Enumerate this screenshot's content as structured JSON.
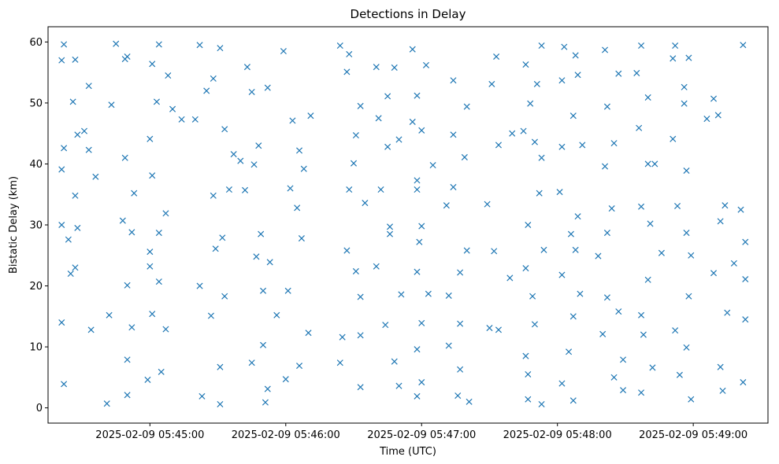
{
  "chart_data": {
    "type": "scatter",
    "title": "Detections in Delay",
    "xlabel": "Time (UTC)",
    "ylabel": "Bistatic Delay (km)",
    "marker": "x",
    "color": "#1f77b4",
    "grid": false,
    "x_axis_type": "time",
    "xlim": [
      "2025-02-09 05:44:15",
      "2025-02-09 05:49:33"
    ],
    "ylim": [
      -2.5,
      62.5
    ],
    "x_ticks": [
      "2025-02-09 05:45:00",
      "2025-02-09 05:46:00",
      "2025-02-09 05:47:00",
      "2025-02-09 05:48:00",
      "2025-02-09 05:49:00"
    ],
    "y_ticks": [
      "0",
      "10",
      "20",
      "30",
      "40",
      "50",
      "60"
    ],
    "points": [
      [
        "2025-02-09 05:44:22",
        59.6
      ],
      [
        "2025-02-09 05:44:21",
        57.0
      ],
      [
        "2025-02-09 05:44:27",
        57.1
      ],
      [
        "2025-02-09 05:44:33",
        52.8
      ],
      [
        "2025-02-09 05:44:26",
        50.2
      ],
      [
        "2025-02-09 05:44:31",
        45.4
      ],
      [
        "2025-02-09 05:44:28",
        44.8
      ],
      [
        "2025-02-09 05:44:22",
        42.6
      ],
      [
        "2025-02-09 05:44:33",
        42.3
      ],
      [
        "2025-02-09 05:44:21",
        39.1
      ],
      [
        "2025-02-09 05:44:36",
        37.9
      ],
      [
        "2025-02-09 05:44:27",
        34.8
      ],
      [
        "2025-02-09 05:44:21",
        30.0
      ],
      [
        "2025-02-09 05:44:28",
        29.5
      ],
      [
        "2025-02-09 05:44:24",
        27.6
      ],
      [
        "2025-02-09 05:44:27",
        23.0
      ],
      [
        "2025-02-09 05:44:25",
        22.0
      ],
      [
        "2025-02-09 05:44:34",
        12.8
      ],
      [
        "2025-02-09 05:44:21",
        14.0
      ],
      [
        "2025-02-09 05:44:22",
        3.9
      ],
      [
        "2025-02-09 05:44:45",
        59.7
      ],
      [
        "2025-02-09 05:44:49",
        57.2
      ],
      [
        "2025-02-09 05:44:50",
        57.6
      ],
      [
        "2025-02-09 05:44:43",
        49.7
      ],
      [
        "2025-02-09 05:44:49",
        41.0
      ],
      [
        "2025-02-09 05:44:53",
        35.2
      ],
      [
        "2025-02-09 05:44:48",
        30.7
      ],
      [
        "2025-02-09 05:44:52",
        28.8
      ],
      [
        "2025-02-09 05:44:50",
        20.1
      ],
      [
        "2025-02-09 05:44:52",
        13.2
      ],
      [
        "2025-02-09 05:44:42",
        15.2
      ],
      [
        "2025-02-09 05:44:50",
        7.9
      ],
      [
        "2025-02-09 05:44:50",
        2.1
      ],
      [
        "2025-02-09 05:44:41",
        0.7
      ],
      [
        "2025-02-09 05:45:04",
        59.6
      ],
      [
        "2025-02-09 05:45:01",
        56.4
      ],
      [
        "2025-02-09 05:45:08",
        54.5
      ],
      [
        "2025-02-09 05:45:03",
        50.2
      ],
      [
        "2025-02-09 05:45:10",
        49.0
      ],
      [
        "2025-02-09 05:45:14",
        47.3
      ],
      [
        "2025-02-09 05:45:00",
        44.1
      ],
      [
        "2025-02-09 05:45:01",
        38.1
      ],
      [
        "2025-02-09 05:45:07",
        31.9
      ],
      [
        "2025-02-09 05:45:04",
        28.7
      ],
      [
        "2025-02-09 05:45:00",
        25.6
      ],
      [
        "2025-02-09 05:45:00",
        23.2
      ],
      [
        "2025-02-09 05:45:04",
        20.7
      ],
      [
        "2025-02-09 05:45:07",
        12.9
      ],
      [
        "2025-02-09 05:45:01",
        15.4
      ],
      [
        "2025-02-09 05:45:05",
        5.9
      ],
      [
        "2025-02-09 05:44:59",
        4.6
      ],
      [
        "2025-02-09 05:45:22",
        59.5
      ],
      [
        "2025-02-09 05:45:31",
        59.0
      ],
      [
        "2025-02-09 05:45:28",
        54.0
      ],
      [
        "2025-02-09 05:45:25",
        52.0
      ],
      [
        "2025-02-09 05:45:20",
        47.3
      ],
      [
        "2025-02-09 05:45:33",
        45.7
      ],
      [
        "2025-02-09 05:45:37",
        41.6
      ],
      [
        "2025-02-09 05:45:40",
        40.5
      ],
      [
        "2025-02-09 05:45:35",
        35.8
      ],
      [
        "2025-02-09 05:45:28",
        34.8
      ],
      [
        "2025-02-09 05:45:32",
        27.9
      ],
      [
        "2025-02-09 05:45:29",
        26.1
      ],
      [
        "2025-02-09 05:45:22",
        20.0
      ],
      [
        "2025-02-09 05:45:33",
        18.3
      ],
      [
        "2025-02-09 05:45:27",
        15.1
      ],
      [
        "2025-02-09 05:45:31",
        6.7
      ],
      [
        "2025-02-09 05:45:23",
        1.9
      ],
      [
        "2025-02-09 05:45:31",
        0.6
      ],
      [
        "2025-02-09 05:45:43",
        55.9
      ],
      [
        "2025-02-09 05:45:52",
        52.5
      ],
      [
        "2025-02-09 05:45:59",
        58.5
      ],
      [
        "2025-02-09 05:45:45",
        51.8
      ],
      [
        "2025-02-09 05:45:48",
        43.0
      ],
      [
        "2025-02-09 05:45:46",
        39.9
      ],
      [
        "2025-02-09 05:45:42",
        35.7
      ],
      [
        "2025-02-09 05:45:49",
        28.5
      ],
      [
        "2025-02-09 05:45:47",
        24.8
      ],
      [
        "2025-02-09 05:45:53",
        23.9
      ],
      [
        "2025-02-09 05:45:50",
        19.2
      ],
      [
        "2025-02-09 05:45:56",
        15.2
      ],
      [
        "2025-02-09 05:45:50",
        10.3
      ],
      [
        "2025-02-09 05:45:45",
        7.4
      ],
      [
        "2025-02-09 05:45:52",
        3.1
      ],
      [
        "2025-02-09 05:45:51",
        0.9
      ],
      [
        "2025-02-09 05:46:03",
        47.1
      ],
      [
        "2025-02-09 05:46:11",
        47.9
      ],
      [
        "2025-02-09 05:46:06",
        42.2
      ],
      [
        "2025-02-09 05:46:08",
        39.2
      ],
      [
        "2025-02-09 05:46:02",
        36.0
      ],
      [
        "2025-02-09 05:46:05",
        32.8
      ],
      [
        "2025-02-09 05:46:07",
        27.8
      ],
      [
        "2025-02-09 05:46:01",
        19.2
      ],
      [
        "2025-02-09 05:46:10",
        12.3
      ],
      [
        "2025-02-09 05:46:06",
        6.9
      ],
      [
        "2025-02-09 05:46:00",
        4.7
      ],
      [
        "2025-02-09 05:46:24",
        59.4
      ],
      [
        "2025-02-09 05:46:28",
        58.0
      ],
      [
        "2025-02-09 05:46:27",
        55.1
      ],
      [
        "2025-02-09 05:46:33",
        49.5
      ],
      [
        "2025-02-09 05:46:31",
        44.7
      ],
      [
        "2025-02-09 05:46:30",
        40.1
      ],
      [
        "2025-02-09 05:46:28",
        35.8
      ],
      [
        "2025-02-09 05:46:35",
        33.6
      ],
      [
        "2025-02-09 05:46:27",
        25.8
      ],
      [
        "2025-02-09 05:46:31",
        22.4
      ],
      [
        "2025-02-09 05:46:33",
        18.2
      ],
      [
        "2025-02-09 05:46:25",
        11.6
      ],
      [
        "2025-02-09 05:46:33",
        11.9
      ],
      [
        "2025-02-09 05:46:24",
        7.4
      ],
      [
        "2025-02-09 05:46:33",
        3.4
      ],
      [
        "2025-02-09 05:46:40",
        55.9
      ],
      [
        "2025-02-09 05:46:48",
        55.8
      ],
      [
        "2025-02-09 05:46:45",
        51.1
      ],
      [
        "2025-02-09 05:46:41",
        47.5
      ],
      [
        "2025-02-09 05:46:45",
        42.8
      ],
      [
        "2025-02-09 05:46:50",
        44.0
      ],
      [
        "2025-02-09 05:46:42",
        35.8
      ],
      [
        "2025-02-09 05:46:46",
        29.7
      ],
      [
        "2025-02-09 05:46:46",
        28.5
      ],
      [
        "2025-02-09 05:46:40",
        23.2
      ],
      [
        "2025-02-09 05:46:51",
        18.6
      ],
      [
        "2025-02-09 05:46:44",
        13.6
      ],
      [
        "2025-02-09 05:46:48",
        7.6
      ],
      [
        "2025-02-09 05:46:50",
        3.6
      ],
      [
        "2025-02-09 05:46:56",
        58.8
      ],
      [
        "2025-02-09 05:47:02",
        56.2
      ],
      [
        "2025-02-09 05:46:58",
        51.2
      ],
      [
        "2025-02-09 05:46:56",
        46.9
      ],
      [
        "2025-02-09 05:47:00",
        45.5
      ],
      [
        "2025-02-09 05:47:05",
        39.8
      ],
      [
        "2025-02-09 05:46:58",
        37.3
      ],
      [
        "2025-02-09 05:46:58",
        35.8
      ],
      [
        "2025-02-09 05:47:00",
        29.8
      ],
      [
        "2025-02-09 05:46:59",
        27.2
      ],
      [
        "2025-02-09 05:46:58",
        22.3
      ],
      [
        "2025-02-09 05:47:03",
        18.7
      ],
      [
        "2025-02-09 05:47:00",
        13.9
      ],
      [
        "2025-02-09 05:46:58",
        9.6
      ],
      [
        "2025-02-09 05:47:00",
        4.2
      ],
      [
        "2025-02-09 05:46:58",
        1.9
      ],
      [
        "2025-02-09 05:47:14",
        53.7
      ],
      [
        "2025-02-09 05:47:20",
        49.4
      ],
      [
        "2025-02-09 05:47:14",
        44.8
      ],
      [
        "2025-02-09 05:47:19",
        41.1
      ],
      [
        "2025-02-09 05:47:14",
        36.2
      ],
      [
        "2025-02-09 05:47:11",
        33.2
      ],
      [
        "2025-02-09 05:47:20",
        25.8
      ],
      [
        "2025-02-09 05:47:17",
        22.2
      ],
      [
        "2025-02-09 05:47:12",
        18.4
      ],
      [
        "2025-02-09 05:47:17",
        13.8
      ],
      [
        "2025-02-09 05:47:12",
        10.2
      ],
      [
        "2025-02-09 05:47:17",
        6.3
      ],
      [
        "2025-02-09 05:47:16",
        2.0
      ],
      [
        "2025-02-09 05:47:21",
        1.0
      ],
      [
        "2025-02-09 05:47:33",
        57.6
      ],
      [
        "2025-02-09 05:47:31",
        53.1
      ],
      [
        "2025-02-09 05:47:40",
        45.0
      ],
      [
        "2025-02-09 05:47:34",
        43.1
      ],
      [
        "2025-02-09 05:47:29",
        33.4
      ],
      [
        "2025-02-09 05:47:32",
        25.7
      ],
      [
        "2025-02-09 05:47:39",
        21.3
      ],
      [
        "2025-02-09 05:47:34",
        12.8
      ],
      [
        "2025-02-09 05:47:30",
        13.1
      ],
      [
        "2025-02-09 05:47:46",
        56.3
      ],
      [
        "2025-02-09 05:47:53",
        59.4
      ],
      [
        "2025-02-09 05:47:51",
        53.1
      ],
      [
        "2025-02-09 05:47:48",
        49.9
      ],
      [
        "2025-02-09 05:47:45",
        45.4
      ],
      [
        "2025-02-09 05:47:50",
        43.6
      ],
      [
        "2025-02-09 05:47:53",
        41.0
      ],
      [
        "2025-02-09 05:47:52",
        35.2
      ],
      [
        "2025-02-09 05:47:47",
        30.0
      ],
      [
        "2025-02-09 05:47:54",
        25.9
      ],
      [
        "2025-02-09 05:47:46",
        22.9
      ],
      [
        "2025-02-09 05:47:49",
        18.3
      ],
      [
        "2025-02-09 05:47:50",
        13.7
      ],
      [
        "2025-02-09 05:47:46",
        8.5
      ],
      [
        "2025-02-09 05:47:47",
        5.5
      ],
      [
        "2025-02-09 05:47:47",
        1.4
      ],
      [
        "2025-02-09 05:47:53",
        0.6
      ],
      [
        "2025-02-09 05:48:03",
        59.2
      ],
      [
        "2025-02-09 05:48:08",
        57.8
      ],
      [
        "2025-02-09 05:48:09",
        54.6
      ],
      [
        "2025-02-09 05:48:02",
        53.7
      ],
      [
        "2025-02-09 05:48:07",
        47.9
      ],
      [
        "2025-02-09 05:48:11",
        43.1
      ],
      [
        "2025-02-09 05:48:02",
        42.8
      ],
      [
        "2025-02-09 05:48:01",
        35.4
      ],
      [
        "2025-02-09 05:48:09",
        31.4
      ],
      [
        "2025-02-09 05:48:06",
        28.5
      ],
      [
        "2025-02-09 05:48:08",
        25.9
      ],
      [
        "2025-02-09 05:48:02",
        21.8
      ],
      [
        "2025-02-09 05:48:10",
        18.7
      ],
      [
        "2025-02-09 05:48:07",
        15.0
      ],
      [
        "2025-02-09 05:48:05",
        9.2
      ],
      [
        "2025-02-09 05:48:02",
        4.0
      ],
      [
        "2025-02-09 05:48:07",
        1.2
      ],
      [
        "2025-02-09 05:48:21",
        58.7
      ],
      [
        "2025-02-09 05:48:27",
        54.8
      ],
      [
        "2025-02-09 05:48:22",
        49.4
      ],
      [
        "2025-02-09 05:48:25",
        43.4
      ],
      [
        "2025-02-09 05:48:21",
        39.6
      ],
      [
        "2025-02-09 05:48:24",
        32.7
      ],
      [
        "2025-02-09 05:48:22",
        28.7
      ],
      [
        "2025-02-09 05:48:18",
        24.9
      ],
      [
        "2025-02-09 05:48:22",
        18.1
      ],
      [
        "2025-02-09 05:48:27",
        15.8
      ],
      [
        "2025-02-09 05:48:20",
        12.1
      ],
      [
        "2025-02-09 05:48:29",
        7.9
      ],
      [
        "2025-02-09 05:48:25",
        5.0
      ],
      [
        "2025-02-09 05:48:29",
        2.9
      ],
      [
        "2025-02-09 05:48:37",
        59.4
      ],
      [
        "2025-02-09 05:48:35",
        54.9
      ],
      [
        "2025-02-09 05:48:40",
        50.9
      ],
      [
        "2025-02-09 05:48:36",
        45.9
      ],
      [
        "2025-02-09 05:48:40",
        40.0
      ],
      [
        "2025-02-09 05:48:43",
        40.0
      ],
      [
        "2025-02-09 05:48:37",
        33.0
      ],
      [
        "2025-02-09 05:48:41",
        30.2
      ],
      [
        "2025-02-09 05:48:46",
        25.4
      ],
      [
        "2025-02-09 05:48:40",
        21.0
      ],
      [
        "2025-02-09 05:48:37",
        15.2
      ],
      [
        "2025-02-09 05:48:38",
        12.0
      ],
      [
        "2025-02-09 05:48:42",
        6.6
      ],
      [
        "2025-02-09 05:48:37",
        2.5
      ],
      [
        "2025-02-09 05:48:52",
        59.4
      ],
      [
        "2025-02-09 05:48:51",
        57.3
      ],
      [
        "2025-02-09 05:48:58",
        57.4
      ],
      [
        "2025-02-09 05:48:56",
        52.6
      ],
      [
        "2025-02-09 05:48:56",
        49.9
      ],
      [
        "2025-02-09 05:48:51",
        44.1
      ],
      [
        "2025-02-09 05:48:57",
        38.9
      ],
      [
        "2025-02-09 05:48:53",
        33.1
      ],
      [
        "2025-02-09 05:48:57",
        28.7
      ],
      [
        "2025-02-09 05:48:59",
        25.0
      ],
      [
        "2025-02-09 05:48:58",
        18.3
      ],
      [
        "2025-02-09 05:48:52",
        12.7
      ],
      [
        "2025-02-09 05:48:57",
        9.9
      ],
      [
        "2025-02-09 05:48:54",
        5.4
      ],
      [
        "2025-02-09 05:48:59",
        1.4
      ],
      [
        "2025-02-09 05:49:06",
        47.4
      ],
      [
        "2025-02-09 05:49:11",
        48.0
      ],
      [
        "2025-02-09 05:49:09",
        50.7
      ],
      [
        "2025-02-09 05:49:14",
        33.2
      ],
      [
        "2025-02-09 05:49:12",
        30.6
      ],
      [
        "2025-02-09 05:49:09",
        22.1
      ],
      [
        "2025-02-09 05:49:18",
        23.7
      ],
      [
        "2025-02-09 05:49:21",
        32.5
      ],
      [
        "2025-02-09 05:49:23",
        27.2
      ],
      [
        "2025-02-09 05:49:15",
        15.6
      ],
      [
        "2025-02-09 05:49:23",
        14.5
      ],
      [
        "2025-02-09 05:49:22",
        4.2
      ],
      [
        "2025-02-09 05:49:13",
        2.8
      ],
      [
        "2025-02-09 05:49:12",
        6.7
      ],
      [
        "2025-02-09 05:49:22",
        59.5
      ],
      [
        "2025-02-09 05:49:23",
        21.1
      ]
    ]
  }
}
